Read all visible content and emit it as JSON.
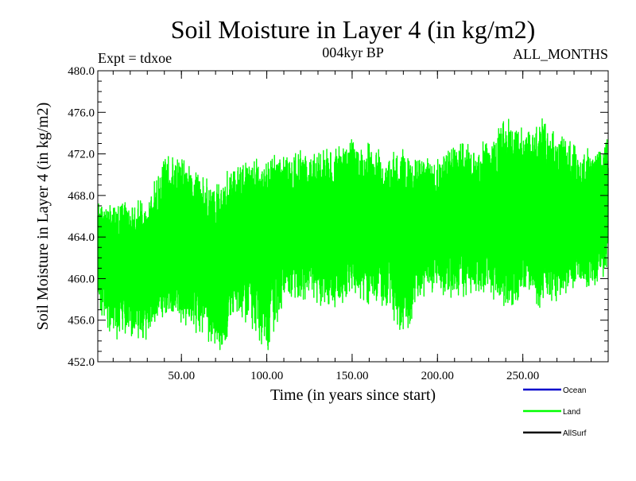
{
  "chart_data": {
    "type": "line",
    "title": "Soil Moisture in Layer 4 (in kg/m2)",
    "subtitle": "004kyr BP",
    "experiment_label": "Expt = tdxoe",
    "period_label": "ALL_MONTHS",
    "xlabel": "Time (in years since start)",
    "ylabel": "Soil Moisture in Layer 4 (in kg/m2)",
    "xlim": [
      1,
      300
    ],
    "ylim": [
      452.0,
      480.0
    ],
    "x_ticks": [
      50,
      100,
      150,
      200,
      250
    ],
    "x_tick_labels": [
      "50.00",
      "100.00",
      "150.00",
      "200.00",
      "250.00"
    ],
    "y_ticks": [
      452,
      456,
      460,
      464,
      468,
      472,
      476,
      480
    ],
    "y_tick_labels": [
      "452.0",
      "456.0",
      "460.0",
      "464.0",
      "468.0",
      "472.0",
      "476.0",
      "480.0"
    ],
    "samples_per_year": 12,
    "series": [
      {
        "name": "Land",
        "color": "#00ff00",
        "anchor_years": [
          1,
          10,
          20,
          30,
          40,
          50,
          60,
          70,
          75,
          80,
          90,
          100,
          110,
          120,
          130,
          140,
          150,
          160,
          170,
          180,
          190,
          200,
          210,
          220,
          230,
          240,
          250,
          260,
          270,
          280,
          290,
          300
        ],
        "mean": [
          462.5,
          461.5,
          461.5,
          461.5,
          463.0,
          463.5,
          462.5,
          462.0,
          461.5,
          464.0,
          464.5,
          465.0,
          465.5,
          465.0,
          465.5,
          465.0,
          466.0,
          466.0,
          465.5,
          465.0,
          465.5,
          465.5,
          466.0,
          465.5,
          466.0,
          466.0,
          466.0,
          466.5,
          466.5,
          465.5,
          465.0,
          467.0
        ],
        "max": [
          468.0,
          467.0,
          467.5,
          467.5,
          472.5,
          471.5,
          470.5,
          469.0,
          470.0,
          471.0,
          471.5,
          471.5,
          472.5,
          472.5,
          472.5,
          472.5,
          473.5,
          473.0,
          472.0,
          472.5,
          472.0,
          471.5,
          473.5,
          473.0,
          474.0,
          475.5,
          474.5,
          476.0,
          474.0,
          473.0,
          472.5,
          473.5
        ],
        "min": [
          457.0,
          454.0,
          454.5,
          454.0,
          456.5,
          455.5,
          454.5,
          453.5,
          452.5,
          456.5,
          455.5,
          452.5,
          457.5,
          458.0,
          457.5,
          457.0,
          458.5,
          457.5,
          457.0,
          454.0,
          458.0,
          458.5,
          458.0,
          458.5,
          458.5,
          456.5,
          458.5,
          457.0,
          457.5,
          459.0,
          459.0,
          460.5
        ]
      },
      {
        "name": "Ocean",
        "color": "#0000cc",
        "values": []
      },
      {
        "name": "AllSurf",
        "color": "#000000",
        "values": []
      }
    ],
    "legend": [
      {
        "label": "Ocean",
        "color": "#0000cc"
      },
      {
        "label": "Land",
        "color": "#00ff00"
      },
      {
        "label": "AllSurf",
        "color": "#000000"
      }
    ],
    "legend_position": "bottom-right",
    "grid": false
  }
}
